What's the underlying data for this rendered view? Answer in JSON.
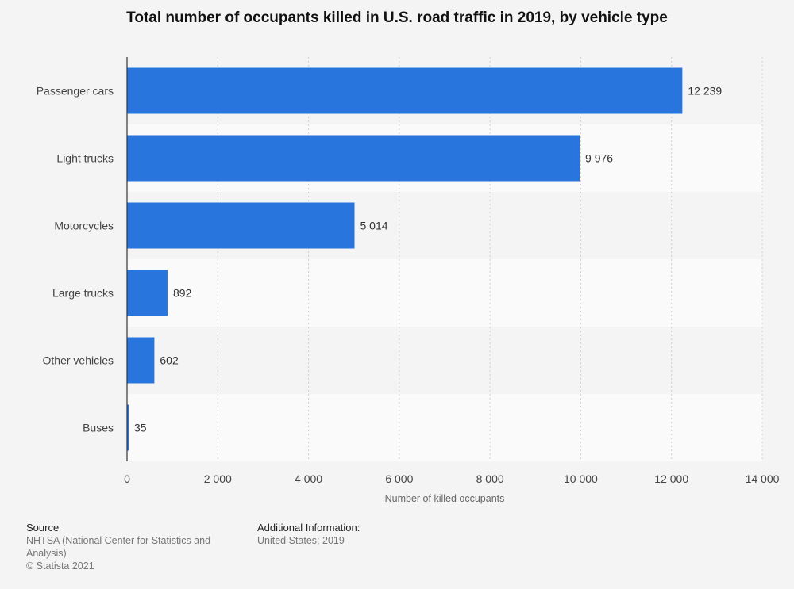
{
  "chart_data": {
    "type": "bar",
    "orientation": "horizontal",
    "title": "Total number of occupants killed in U.S. road traffic in 2019, by vehicle type",
    "xlabel": "Number of killed occupants",
    "ylabel": "",
    "categories": [
      "Passenger cars",
      "Light trucks",
      "Motorcycles",
      "Large trucks",
      "Other vehicles",
      "Buses"
    ],
    "values": [
      12239,
      9976,
      5014,
      892,
      602,
      35
    ],
    "value_labels": [
      "12 239",
      "9 976",
      "5 014",
      "892",
      "602",
      "35"
    ],
    "xlim": [
      0,
      14000
    ],
    "ticks": [
      0,
      2000,
      4000,
      6000,
      8000,
      10000,
      12000,
      14000
    ],
    "tick_labels": [
      "0",
      "2 000",
      "4 000",
      "6 000",
      "8 000",
      "10 000",
      "12 000",
      "14 000"
    ],
    "grid": true,
    "bar_color": "#2876dd"
  },
  "footer": {
    "source_heading": "Source",
    "source_text": "NHTSA (National Center for Statistics and Analysis)",
    "copyright": "© Statista 2021",
    "info_heading": "Additional Information:",
    "info_text": "United States; 2019"
  }
}
